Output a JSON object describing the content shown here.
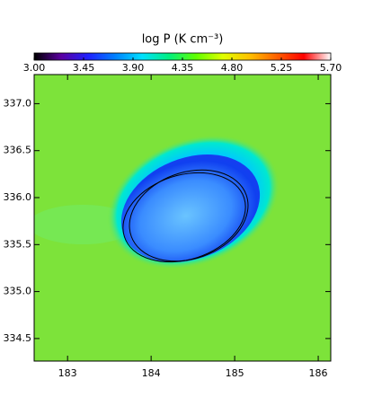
{
  "chart_data": {
    "type": "heatmap",
    "title": "log P (K cm⁻³)",
    "colorbar": {
      "clim": [
        3.0,
        5.7
      ],
      "ticks": [
        {
          "value": 3,
          "label": "3.00"
        },
        3.45,
        {
          "value": 3.9,
          "label": "3.90"
        },
        4.35,
        {
          "value": 4.8,
          "label": "4.80"
        },
        5.25,
        {
          "value": 5.7,
          "label": "5.70"
        }
      ],
      "colormap": [
        "#000000",
        "#5a00a0",
        "#2020ff",
        "#0080ff",
        "#00e0ff",
        "#00f080",
        "#60ff00",
        "#e0ff00",
        "#ffc000",
        "#ff6000",
        "#ff0000",
        "#ffffff"
      ]
    },
    "xlim": [
      182.6,
      186.15
    ],
    "xticks": [
      183,
      184,
      185,
      186
    ],
    "ylim": [
      334.26,
      337.31
    ],
    "yticks": [
      {
        "value": 334.5,
        "label": "334.5"
      },
      {
        "value": 335,
        "label": "335.0"
      },
      {
        "value": 335.5,
        "label": "335.5"
      },
      {
        "value": 336,
        "label": "336.0"
      },
      {
        "value": 336.5,
        "label": "336.5"
      },
      {
        "value": 337,
        "label": "337.0"
      }
    ]
  }
}
